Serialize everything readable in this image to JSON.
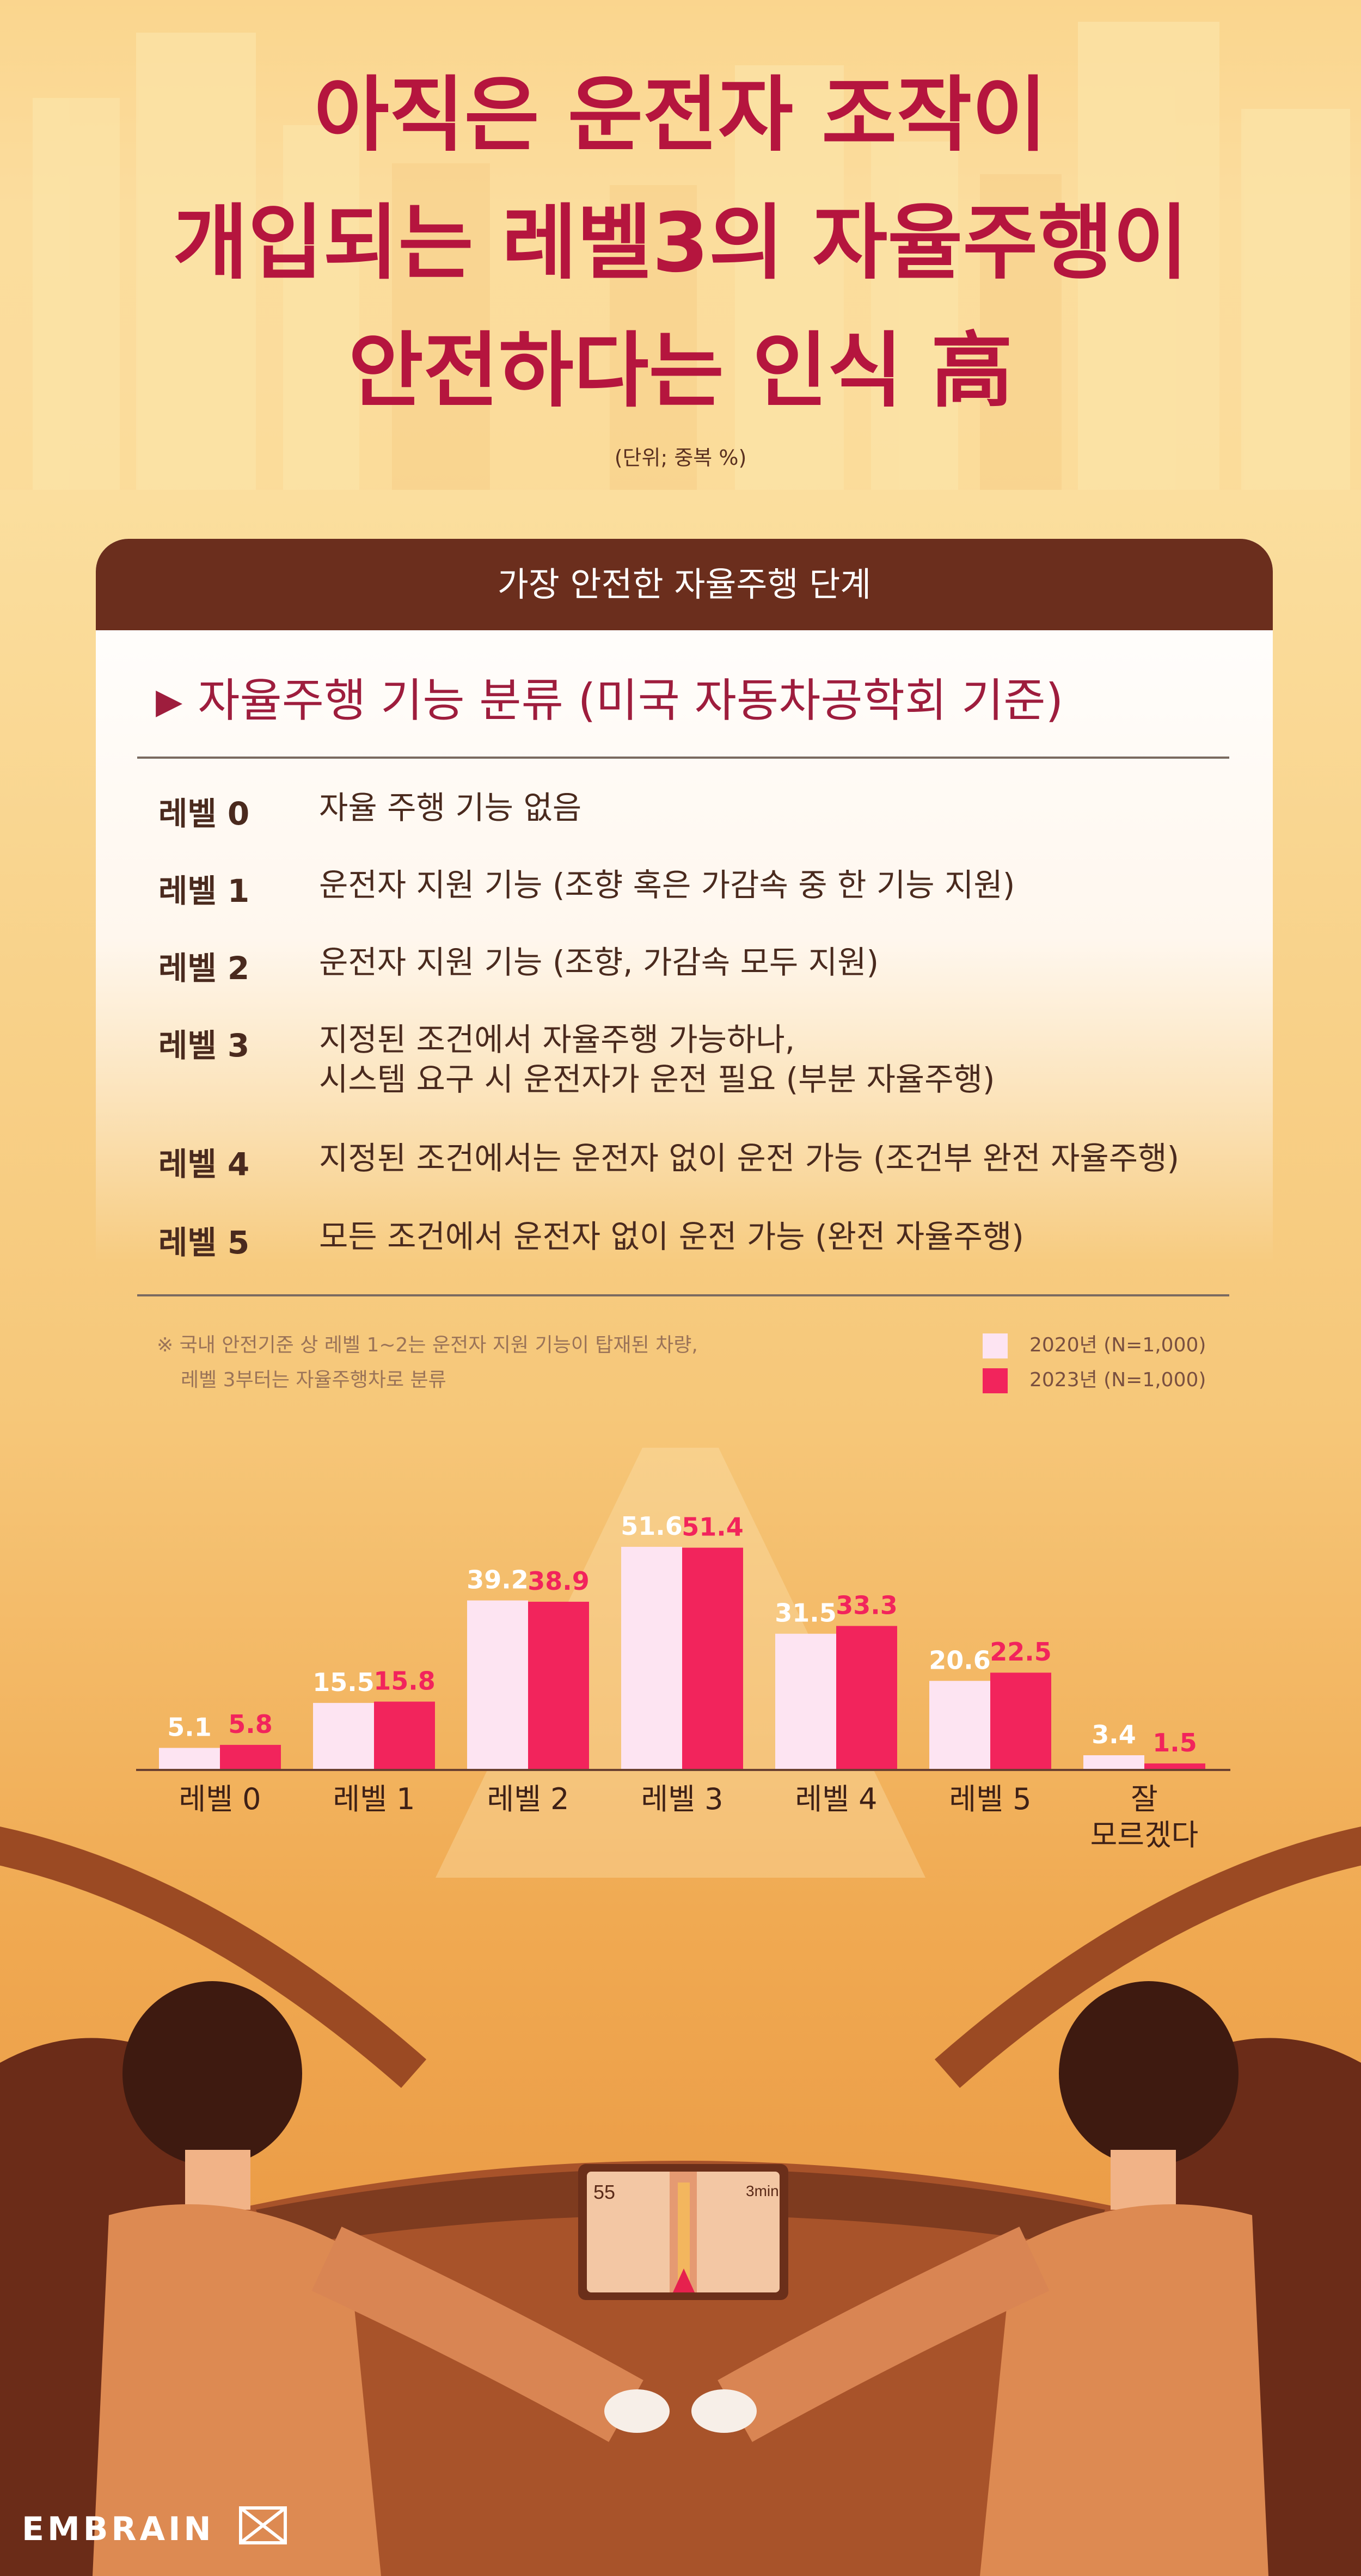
{
  "title_lines": [
    "아직은 운전자 조작이",
    "개입되는 레벨3의 자율주행이",
    "안전하다는 인식 高"
  ],
  "unit_note": "(단위; 중복 %)",
  "card": {
    "header": "가장 안전한 자율주행 단계",
    "section_title": "자율주행 기능 분류 (미국 자동차공학회 기준)",
    "section_arrow": "▶",
    "levels": [
      {
        "name": "레벨 0",
        "desc": [
          "자율 주행 기능 없음"
        ]
      },
      {
        "name": "레벨 1",
        "desc": [
          "운전자 지원 기능 (조향 혹은 가감속 중 한 기능 지원)"
        ]
      },
      {
        "name": "레벨 2",
        "desc": [
          "운전자 지원 기능 (조향, 가감속 모두 지원)"
        ]
      },
      {
        "name": "레벨 3",
        "desc": [
          "지정된 조건에서 자율주행 가능하나,",
          "시스템 요구 시 운전자가 운전 필요 (부분 자율주행)"
        ]
      },
      {
        "name": "레벨 4",
        "desc": [
          "지정된 조건에서는 운전자 없이 운전 가능 (조건부 완전 자율주행)"
        ]
      },
      {
        "name": "레벨 5",
        "desc": [
          "모든 조건에서 운전자 없이 운전 가능 (완전 자율주행)"
        ]
      }
    ]
  },
  "note_lines": [
    "※ 국내 안전기준 상 레벨 1~2는 운전자 지원 기능이 탑재된 차량,",
    "레벨 3부터는 자율주행차로 분류"
  ],
  "legend": [
    {
      "label": "2020년 (N=1,000)",
      "color": "#fde4f2"
    },
    {
      "label": "2023년 (N=1,000)",
      "color": "#f2245c"
    }
  ],
  "chart_data": {
    "type": "bar",
    "categories": [
      "레벨 0",
      "레벨 1",
      "레벨 2",
      "레벨 3",
      "레벨 4",
      "레벨 5",
      "잘 모르겠다"
    ],
    "category_lines": [
      [
        "레벨 0"
      ],
      [
        "레벨 1"
      ],
      [
        "레벨 2"
      ],
      [
        "레벨 3"
      ],
      [
        "레벨 4"
      ],
      [
        "레벨 5"
      ],
      [
        "잘",
        "모르겠다"
      ]
    ],
    "series": [
      {
        "name": "2020년 (N=1,000)",
        "values": [
          5.1,
          15.5,
          39.2,
          51.6,
          31.5,
          20.6,
          3.4
        ],
        "color": "#fde4f2",
        "label_color": "#ffffff"
      },
      {
        "name": "2023년 (N=1,000)",
        "values": [
          5.8,
          15.8,
          38.9,
          51.4,
          33.3,
          22.5,
          1.5
        ],
        "color": "#f2245c",
        "label_color": "#f2245c"
      }
    ],
    "title": "가장 안전한 자율주행 단계",
    "xlabel": "",
    "ylabel": "",
    "ylim": [
      0,
      60
    ],
    "grid": false,
    "legend_position": "top-right"
  },
  "dashboard": {
    "speed": "55",
    "nav_time": "3min"
  },
  "brand": "EMBRAIN"
}
